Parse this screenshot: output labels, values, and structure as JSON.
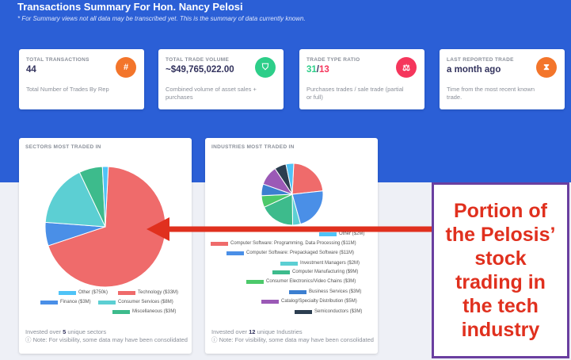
{
  "header": {
    "title": "Transactions Summary For Hon. Nancy Pelosi",
    "subtitle": "* For Summary views not all data may be transcribed yet. This is the summary of data currently known."
  },
  "stats": {
    "total_transactions": {
      "label": "TOTAL TRANSACTIONS",
      "value": "44",
      "desc": "Total Number of Trades By Rep",
      "icon": "#",
      "icon_name": "hash-icon",
      "color": "#f3752b"
    },
    "total_volume": {
      "label": "TOTAL TRADE VOLUME",
      "value": "~$49,765,022.00",
      "desc": "Combined volume of asset sales + purchases",
      "icon": "⛉",
      "icon_name": "funnel-icon",
      "color": "#2dce89"
    },
    "trade_ratio": {
      "label": "TRADE TYPE RATIO",
      "buy": "31",
      "sep": "/",
      "sell": "13",
      "desc": "Purchases trades / sale trade (partial or full)",
      "icon": "⚖",
      "icon_name": "scale-icon",
      "color": "#f5365c"
    },
    "last_trade": {
      "label": "LAST REPORTED TRADE",
      "value": "a month ago",
      "desc": "Time from the most recent known trade.",
      "icon": "⧗",
      "icon_name": "hourglass-icon",
      "color": "#f3752b"
    }
  },
  "sectors_card": {
    "label": "SECTORS MOST TRADED IN",
    "foot_prefix": "Invested over",
    "foot_count": "5",
    "foot_suffix": "unique sectors",
    "note": "Note: For visibility, some data may have been consolidated",
    "legend": [
      {
        "label": "Other ($750k)",
        "color": "#4fc3f7"
      },
      {
        "label": "Technology ($33M)",
        "color": "#ef6b6b"
      },
      {
        "label": "Finance ($3M)",
        "color": "#4a8fe7"
      },
      {
        "label": "Consumer Services ($8M)",
        "color": "#5ccfd3"
      },
      {
        "label": "Miscellaneous ($3M)",
        "color": "#3dbb8c"
      }
    ]
  },
  "industries_card": {
    "label": "INDUSTRIES MOST TRADED IN",
    "foot_prefix": "Invested over",
    "foot_count": "12",
    "foot_suffix": "unique Industries",
    "note": "Note: For visibility, some data may have been consolidated",
    "legend": [
      {
        "label": "Other ($2M)",
        "color": "#4fc3f7"
      },
      {
        "label": "Computer Software: Programming, Data Processing ($11M)",
        "color": "#ef6b6b"
      },
      {
        "label": "Computer Software: Prepackaged Software ($11M)",
        "color": "#4a8fe7"
      },
      {
        "label": "Investment Managers ($2M)",
        "color": "#5ccfd3"
      },
      {
        "label": "Computer Manufacturing ($9M)",
        "color": "#3dbb8c"
      },
      {
        "label": "Consumer Electronics/Video Chains ($3M)",
        "color": "#4cc96a"
      },
      {
        "label": "Business Services ($3M)",
        "color": "#3c7fd0"
      },
      {
        "label": "Catalog/Specialty Distribution ($5M)",
        "color": "#9b59b6"
      },
      {
        "label": "Semiconductors ($3M)",
        "color": "#2c3e50"
      }
    ]
  },
  "annotation": {
    "text": "Portion of\nthe Pelosis’\nstock\ntrading in\nthe tech\nindustry",
    "border_color": "#6a3fa0",
    "text_color": "#e0301e"
  },
  "chart_data": [
    {
      "type": "pie",
      "title": "SECTORS MOST TRADED IN",
      "categories": [
        "Other",
        "Technology",
        "Finance",
        "Consumer Services",
        "Miscellaneous"
      ],
      "values": [
        0.75,
        33,
        3,
        8,
        3
      ],
      "units": "$M",
      "colors": [
        "#4fc3f7",
        "#ef6b6b",
        "#4a8fe7",
        "#5ccfd3",
        "#3dbb8c"
      ]
    },
    {
      "type": "pie",
      "title": "INDUSTRIES MOST TRADED IN",
      "categories": [
        "Other",
        "Computer Software: Programming, Data Processing",
        "Computer Software: Prepackaged Software",
        "Investment Managers",
        "Computer Manufacturing",
        "Consumer Electronics/Video Chains",
        "Business Services",
        "Catalog/Specialty Distribution",
        "Semiconductors"
      ],
      "values": [
        2,
        11,
        11,
        2,
        9,
        3,
        3,
        5,
        3
      ],
      "units": "$M",
      "colors": [
        "#4fc3f7",
        "#ef6b6b",
        "#4a8fe7",
        "#5ccfd3",
        "#3dbb8c",
        "#4cc96a",
        "#3c7fd0",
        "#9b59b6",
        "#2c3e50"
      ]
    }
  ]
}
